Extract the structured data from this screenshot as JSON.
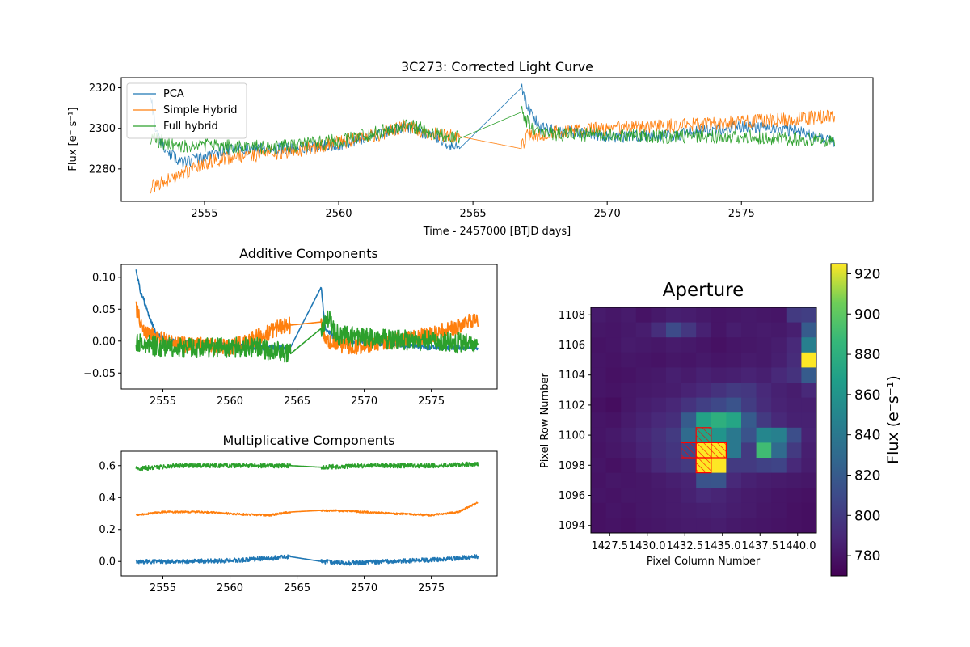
{
  "colors": {
    "pca": "#1f77b4",
    "simple_hybrid": "#ff7f0e",
    "full_hybrid": "#2ca02c",
    "aperture_hatch": "#ff0000",
    "colormap": "viridis"
  },
  "chart_data": [
    {
      "id": "corrected-light-curve",
      "type": "line",
      "title": "3C273: Corrected Light Curve",
      "xlabel": "Time - 2457000 [BTJD days]",
      "ylabel": "Flux [e⁻ s⁻¹]",
      "xlim": [
        2551.9,
        2579.9
      ],
      "ylim": [
        2264,
        2325
      ],
      "xticks": [
        2555,
        2560,
        2565,
        2570,
        2575
      ],
      "yticks": [
        2280,
        2300,
        2320
      ],
      "legend_position": "upper-left",
      "gap": [
        2564.5,
        2566.8
      ],
      "series": [
        {
          "name": "PCA",
          "color_key": "pca",
          "knots": [
            [
              2553.0,
              2317
            ],
            [
              2553.2,
              2297
            ],
            [
              2553.6,
              2288
            ],
            [
              2554.2,
              2283
            ],
            [
              2555.0,
              2286
            ],
            [
              2556.0,
              2290
            ],
            [
              2558.0,
              2290
            ],
            [
              2560.0,
              2292
            ],
            [
              2561.5,
              2297
            ],
            [
              2562.5,
              2301
            ],
            [
              2563.5,
              2296
            ],
            [
              2564.3,
              2291
            ],
            [
              2564.5,
              2290
            ],
            [
              2566.8,
              2320
            ],
            [
              2567.0,
              2312
            ],
            [
              2567.5,
              2300
            ],
            [
              2570.0,
              2296
            ],
            [
              2572.0,
              2296
            ],
            [
              2575.0,
              2301
            ],
            [
              2577.0,
              2299
            ],
            [
              2578.5,
              2293
            ]
          ],
          "noise": 3.0,
          "seed": 11
        },
        {
          "name": "Simple Hybrid",
          "color_key": "simple_hybrid",
          "knots": [
            [
              2553.0,
              2271
            ],
            [
              2554.0,
              2276
            ],
            [
              2555.0,
              2283
            ],
            [
              2556.0,
              2286
            ],
            [
              2558.0,
              2288
            ],
            [
              2560.0,
              2293
            ],
            [
              2561.5,
              2297
            ],
            [
              2562.5,
              2301
            ],
            [
              2563.5,
              2297
            ],
            [
              2564.5,
              2296
            ],
            [
              2566.8,
              2290
            ],
            [
              2567.0,
              2296
            ],
            [
              2568.0,
              2298
            ],
            [
              2570.0,
              2300
            ],
            [
              2572.0,
              2301
            ],
            [
              2575.0,
              2303
            ],
            [
              2578.5,
              2306
            ]
          ],
          "noise": 3.5,
          "seed": 23
        },
        {
          "name": "Full hybrid",
          "color_key": "full_hybrid",
          "knots": [
            [
              2553.0,
              2295
            ],
            [
              2554.0,
              2291
            ],
            [
              2555.0,
              2292
            ],
            [
              2556.0,
              2291
            ],
            [
              2558.0,
              2291
            ],
            [
              2560.0,
              2294
            ],
            [
              2561.5,
              2298
            ],
            [
              2562.5,
              2302
            ],
            [
              2563.5,
              2298
            ],
            [
              2564.5,
              2295
            ],
            [
              2566.8,
              2308
            ],
            [
              2567.2,
              2300
            ],
            [
              2568.0,
              2297
            ],
            [
              2570.0,
              2297
            ],
            [
              2572.0,
              2296
            ],
            [
              2575.0,
              2296
            ],
            [
              2578.5,
              2294
            ]
          ],
          "noise": 3.5,
          "seed": 37
        }
      ]
    },
    {
      "id": "additive-components",
      "type": "line",
      "title": "Additive Components",
      "xlim": [
        2551.9,
        2579.9
      ],
      "ylim": [
        -0.075,
        0.12
      ],
      "xticks": [
        2555,
        2560,
        2565,
        2570,
        2575
      ],
      "yticks": [
        -0.05,
        0.0,
        0.05,
        0.1
      ],
      "ytick_labels": [
        "−0.05",
        "0.00",
        "0.05",
        "0.10"
      ],
      "gap": [
        2564.5,
        2566.8
      ],
      "series": [
        {
          "color_key": "pca",
          "knots": [
            [
              2553.0,
              0.11
            ],
            [
              2553.3,
              0.08
            ],
            [
              2553.8,
              0.05
            ],
            [
              2554.5,
              0.01
            ],
            [
              2555.5,
              0.0
            ],
            [
              2558.0,
              -0.005
            ],
            [
              2562.0,
              -0.01
            ],
            [
              2564.5,
              -0.01
            ],
            [
              2566.8,
              0.085
            ],
            [
              2567.1,
              0.02
            ],
            [
              2568.0,
              0.0
            ],
            [
              2572.0,
              -0.005
            ],
            [
              2575.0,
              -0.01
            ],
            [
              2578.5,
              -0.01
            ]
          ],
          "noise": 0.004,
          "seed": 5
        },
        {
          "color_key": "simple_hybrid",
          "knots": [
            [
              2553.0,
              0.05
            ],
            [
              2553.5,
              0.02
            ],
            [
              2554.5,
              0.005
            ],
            [
              2556.0,
              -0.005
            ],
            [
              2560.0,
              -0.01
            ],
            [
              2562.0,
              0.005
            ],
            [
              2563.5,
              0.02
            ],
            [
              2564.5,
              0.025
            ],
            [
              2566.8,
              0.03
            ],
            [
              2567.2,
              0.0
            ],
            [
              2569.0,
              -0.01
            ],
            [
              2572.0,
              0.0
            ],
            [
              2575.0,
              0.01
            ],
            [
              2578.5,
              0.035
            ]
          ],
          "noise": 0.013,
          "seed": 8
        },
        {
          "color_key": "full_hybrid",
          "knots": [
            [
              2553.0,
              0.0
            ],
            [
              2555.0,
              -0.01
            ],
            [
              2558.0,
              -0.01
            ],
            [
              2562.0,
              -0.01
            ],
            [
              2564.5,
              -0.02
            ],
            [
              2566.8,
              0.02
            ],
            [
              2567.2,
              0.04
            ],
            [
              2568.0,
              0.01
            ],
            [
              2570.0,
              0.005
            ],
            [
              2575.0,
              0.0
            ],
            [
              2578.5,
              -0.005
            ]
          ],
          "noise": 0.016,
          "seed": 13
        }
      ]
    },
    {
      "id": "multiplicative-components",
      "type": "line",
      "title": "Multiplicative Components",
      "xlim": [
        2551.9,
        2579.9
      ],
      "ylim": [
        -0.09,
        0.69
      ],
      "xticks": [
        2555,
        2560,
        2565,
        2570,
        2575
      ],
      "yticks": [
        0.0,
        0.2,
        0.4,
        0.6
      ],
      "ytick_labels": [
        "0.0",
        "0.2",
        "0.4",
        "0.6"
      ],
      "gap": [
        2564.5,
        2566.8
      ],
      "series": [
        {
          "color_key": "pca",
          "knots": [
            [
              2553.0,
              0.0
            ],
            [
              2556.0,
              0.0
            ],
            [
              2560.0,
              0.005
            ],
            [
              2563.0,
              0.02
            ],
            [
              2564.5,
              0.03
            ],
            [
              2566.8,
              0.0
            ],
            [
              2569.0,
              -0.01
            ],
            [
              2572.0,
              0.0
            ],
            [
              2575.0,
              0.01
            ],
            [
              2578.5,
              0.03
            ]
          ],
          "noise": 0.014,
          "seed": 17
        },
        {
          "color_key": "simple_hybrid",
          "knots": [
            [
              2553.0,
              0.29
            ],
            [
              2555.0,
              0.31
            ],
            [
              2558.0,
              0.31
            ],
            [
              2561.0,
              0.295
            ],
            [
              2563.0,
              0.29
            ],
            [
              2564.5,
              0.31
            ],
            [
              2566.8,
              0.32
            ],
            [
              2569.0,
              0.315
            ],
            [
              2572.0,
              0.3
            ],
            [
              2575.0,
              0.29
            ],
            [
              2577.0,
              0.31
            ],
            [
              2578.5,
              0.37
            ]
          ],
          "noise": 0.006,
          "seed": 19
        },
        {
          "color_key": "full_hybrid",
          "knots": [
            [
              2553.0,
              0.58
            ],
            [
              2556.0,
              0.6
            ],
            [
              2560.0,
              0.6
            ],
            [
              2564.5,
              0.6
            ],
            [
              2566.8,
              0.59
            ],
            [
              2570.0,
              0.6
            ],
            [
              2575.0,
              0.6
            ],
            [
              2578.5,
              0.61
            ]
          ],
          "noise": 0.014,
          "seed": 29
        }
      ]
    },
    {
      "id": "aperture",
      "type": "heatmap",
      "title": "Aperture",
      "xlabel": "Pixel Column Number",
      "ylabel": "Pixel Row Number",
      "colorbar_label": "Flux (e⁻s⁻¹)",
      "color_range": [
        770,
        925
      ],
      "colorbar_ticks": [
        780,
        800,
        820,
        840,
        860,
        880,
        900,
        920
      ],
      "xtick_labels": [
        "1427.5",
        "1430.0",
        "1432.5",
        "1435.0",
        "1437.5",
        "1440.0"
      ],
      "ytick_labels": [
        "1094",
        "1096",
        "1098",
        "1100",
        "1102",
        "1104",
        "1106",
        "1108"
      ],
      "row_start": 1093.5,
      "col_start": 1426.25,
      "grid": [
        [
          783,
          781,
          783,
          779,
          782,
          785,
          784,
          782,
          780,
          781,
          782,
          781,
          780,
          800,
          802
        ],
        [
          781,
          780,
          782,
          784,
          793,
          810,
          798,
          786,
          780,
          784,
          782,
          783,
          782,
          785,
          820
        ],
        [
          779,
          780,
          783,
          782,
          781,
          783,
          782,
          780,
          778,
          780,
          781,
          782,
          784,
          790,
          845
        ],
        [
          780,
          779,
          781,
          780,
          779,
          781,
          780,
          782,
          780,
          781,
          783,
          782,
          785,
          792,
          925
        ],
        [
          780,
          778,
          779,
          781,
          782,
          785,
          783,
          786,
          784,
          785,
          787,
          785,
          790,
          795,
          820
        ],
        [
          780,
          779,
          781,
          782,
          783,
          784,
          787,
          790,
          795,
          800,
          798,
          790,
          786,
          784,
          790
        ],
        [
          778,
          776,
          781,
          784,
          786,
          789,
          796,
          803,
          808,
          815,
          801,
          792,
          787,
          785,
          785
        ],
        [
          780,
          779,
          783,
          786,
          790,
          793,
          820,
          870,
          880,
          872,
          820,
          800,
          790,
          786,
          786
        ],
        [
          780,
          782,
          785,
          789,
          794,
          800,
          830,
          870,
          860,
          840,
          815,
          850,
          846,
          812,
          787
        ],
        [
          779,
          781,
          783,
          787,
          793,
          797,
          808,
          925,
          925,
          840,
          800,
          890,
          830,
          800,
          785
        ],
        [
          780,
          778,
          780,
          784,
          790,
          795,
          800,
          925,
          925,
          800,
          800,
          804,
          806,
          790,
          784
        ],
        [
          779,
          781,
          780,
          781,
          783,
          785,
          787,
          815,
          816,
          790,
          786,
          784,
          783,
          782,
          781
        ],
        [
          780,
          779,
          781,
          781,
          782,
          783,
          786,
          790,
          788,
          785,
          783,
          782,
          780,
          779,
          778
        ],
        [
          778,
          780,
          779,
          781,
          782,
          783,
          784,
          785,
          786,
          784,
          783,
          781,
          780,
          778,
          777
        ],
        [
          778,
          779,
          778,
          780,
          781,
          782,
          783,
          783,
          784,
          782,
          781,
          780,
          779,
          778,
          777
        ]
      ],
      "aperture_pixels": [
        [
          8,
          7
        ],
        [
          9,
          7
        ],
        [
          9,
          6
        ],
        [
          9,
          8
        ],
        [
          10,
          7
        ]
      ]
    }
  ],
  "legend": {
    "items": [
      {
        "label": "PCA",
        "color_key": "pca"
      },
      {
        "label": "Simple Hybrid",
        "color_key": "simple_hybrid"
      },
      {
        "label": "Full hybrid",
        "color_key": "full_hybrid"
      }
    ]
  }
}
